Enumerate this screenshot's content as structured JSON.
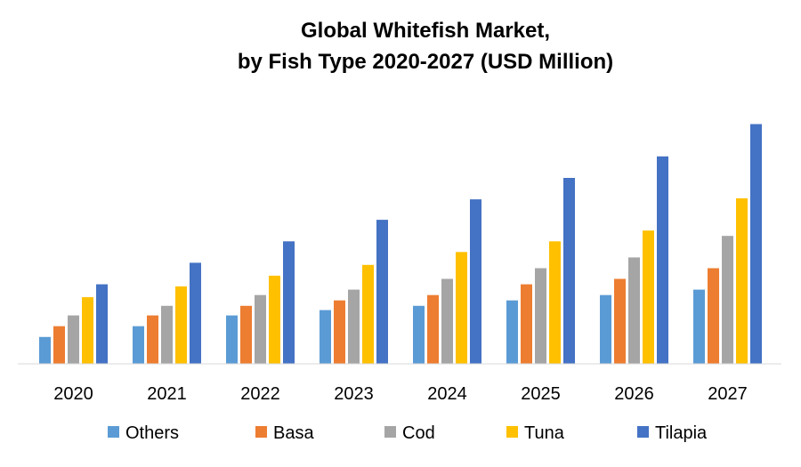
{
  "chart_data": {
    "type": "bar",
    "title": "Global Whitefish Market,",
    "subtitle": "by Fish Type 2020-2027 (USD Million)",
    "xlabel": "",
    "ylabel": "",
    "categories": [
      "2020",
      "2021",
      "2022",
      "2023",
      "2024",
      "2025",
      "2026",
      "2027"
    ],
    "series": [
      {
        "name": "Others",
        "color": "#5B9BD5",
        "values": [
          25,
          35,
          45,
          50,
          54,
          59,
          64,
          69
        ]
      },
      {
        "name": "Basa",
        "color": "#ED7D31",
        "values": [
          35,
          45,
          54,
          59,
          64,
          74,
          79,
          89
        ]
      },
      {
        "name": "Cod",
        "color": "#A5A5A5",
        "values": [
          45,
          54,
          64,
          69,
          79,
          89,
          99,
          119
        ]
      },
      {
        "name": "Tuna",
        "color": "#FFC000",
        "values": [
          62,
          72,
          82,
          92,
          104,
          114,
          124,
          154
        ]
      },
      {
        "name": "Tilapia",
        "color": "#4472C4",
        "values": [
          74,
          94,
          114,
          134,
          153,
          173,
          193,
          223
        ]
      }
    ],
    "ylim": [
      0,
      240
    ],
    "grid": false,
    "legend_position": "bottom"
  }
}
